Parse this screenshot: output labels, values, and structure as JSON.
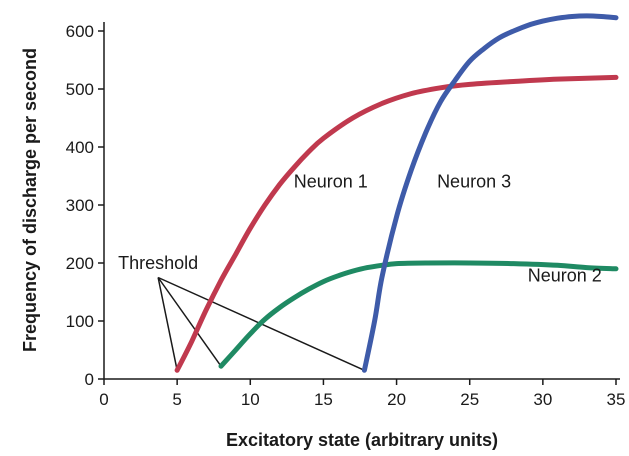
{
  "chart_data": {
    "type": "line",
    "title": "",
    "xlabel": "Excitatory state (arbitrary units)",
    "ylabel": "Frequency of discharge per second",
    "xlim": [
      0,
      35
    ],
    "ylim": [
      0,
      600
    ],
    "xticks": [
      0,
      5,
      10,
      15,
      20,
      25,
      30,
      35
    ],
    "yticks": [
      0,
      100,
      200,
      300,
      400,
      500,
      600
    ],
    "grid": false,
    "series": [
      {
        "name": "Neuron 1",
        "color": "#c0394e",
        "x": [
          5,
          6,
          7,
          8,
          9,
          10,
          11,
          12,
          13,
          14,
          15,
          17,
          19,
          21,
          23,
          25,
          28,
          31,
          35
        ],
        "y": [
          15,
          65,
          120,
          170,
          215,
          260,
          300,
          335,
          365,
          392,
          415,
          450,
          475,
          492,
          502,
          508,
          513,
          517,
          520
        ]
      },
      {
        "name": "Neuron 2",
        "color": "#1f8a63",
        "x": [
          8,
          9,
          10,
          11,
          12,
          13,
          14,
          15,
          16,
          17,
          18,
          19,
          20,
          22,
          25,
          28,
          31,
          33,
          35
        ],
        "y": [
          22,
          50,
          78,
          103,
          123,
          140,
          155,
          168,
          178,
          186,
          192,
          196,
          199,
          200,
          200,
          199,
          196,
          192,
          190
        ]
      },
      {
        "name": "Neuron 3",
        "color": "#3e5ba9",
        "x": [
          17.8,
          18.5,
          19,
          20,
          21,
          22,
          23,
          24,
          25,
          26,
          27,
          28,
          29,
          30,
          31,
          32,
          33,
          34,
          35
        ],
        "y": [
          15,
          100,
          175,
          280,
          360,
          425,
          478,
          515,
          548,
          570,
          588,
          600,
          610,
          617,
          622,
          625,
          626,
          625,
          623
        ]
      }
    ],
    "annotations": [
      {
        "text": "Neuron 1",
        "x": 15.5,
        "y": 330
      },
      {
        "text": "Neuron 3",
        "x": 25.3,
        "y": 330
      },
      {
        "text": "Neuron 2",
        "x": 31.5,
        "y": 168
      },
      {
        "text": "Threshold",
        "x": 3.7,
        "y": 190,
        "pointer_origin": {
          "x": 3.7,
          "y": 175
        },
        "targets": [
          {
            "x": 5,
            "y": 15
          },
          {
            "x": 8,
            "y": 22
          },
          {
            "x": 17.8,
            "y": 15
          }
        ]
      }
    ]
  }
}
